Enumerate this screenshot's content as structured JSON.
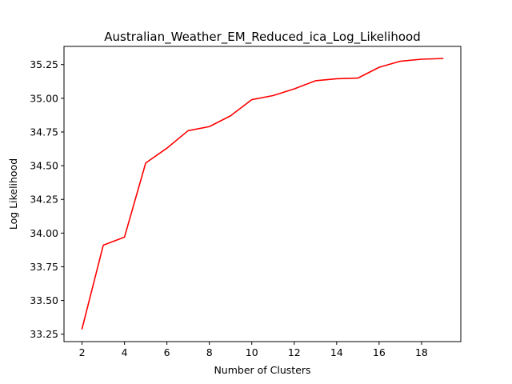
{
  "chart_data": {
    "type": "line",
    "title": "Australian_Weather_EM_Reduced_ica_Log_Likelihood",
    "xlabel": "Number of Clusters",
    "ylabel": "Log Likelihood",
    "xlim": [
      1.15,
      19.85
    ],
    "ylim": [
      33.195,
      35.385
    ],
    "x_ticks": [
      2,
      4,
      6,
      8,
      10,
      12,
      14,
      16,
      18
    ],
    "y_ticks": [
      33.25,
      33.5,
      33.75,
      34.0,
      34.25,
      34.5,
      34.75,
      35.0,
      35.25
    ],
    "x_tick_labels": [
      "2",
      "4",
      "6",
      "8",
      "10",
      "12",
      "14",
      "16",
      "18"
    ],
    "y_tick_labels": [
      "33.25",
      "33.50",
      "33.75",
      "34.00",
      "34.25",
      "34.50",
      "34.75",
      "35.00",
      "35.25"
    ],
    "grid": false,
    "legend": "none",
    "series": [
      {
        "color": "#ff0000",
        "x": [
          2,
          3,
          4,
          5,
          6,
          7,
          8,
          9,
          10,
          11,
          12,
          13,
          14,
          15,
          16,
          17,
          18,
          19
        ],
        "y": [
          33.29,
          33.91,
          33.97,
          34.52,
          34.63,
          34.76,
          34.79,
          34.87,
          34.99,
          35.02,
          35.07,
          35.13,
          35.145,
          35.15,
          35.23,
          35.275,
          35.29,
          35.295
        ]
      }
    ]
  }
}
